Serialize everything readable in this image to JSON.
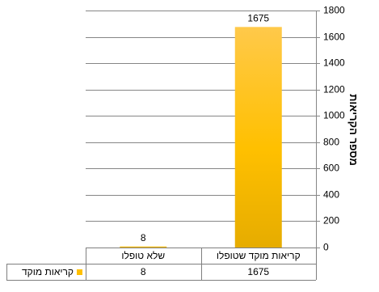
{
  "chart_data": {
    "type": "bar",
    "orientation": "rtl",
    "categories": [
      "קריאות מוקד שטופלו",
      "שלא טופלו"
    ],
    "series": [
      {
        "name": "קריאות מוקד",
        "values": [
          1675,
          8
        ],
        "color": "#FFC000"
      }
    ],
    "ylabel": "מספר הקריאות",
    "ylim": [
      0,
      1800
    ],
    "yticks": [
      0,
      200,
      400,
      600,
      800,
      1000,
      1200,
      1400,
      1600,
      1800
    ],
    "y_axis_side": "right",
    "gridlines": true,
    "data_table": true,
    "legend_key_color": "#FFC000",
    "axis_color": "#868686",
    "gridline_color": "#868686"
  }
}
